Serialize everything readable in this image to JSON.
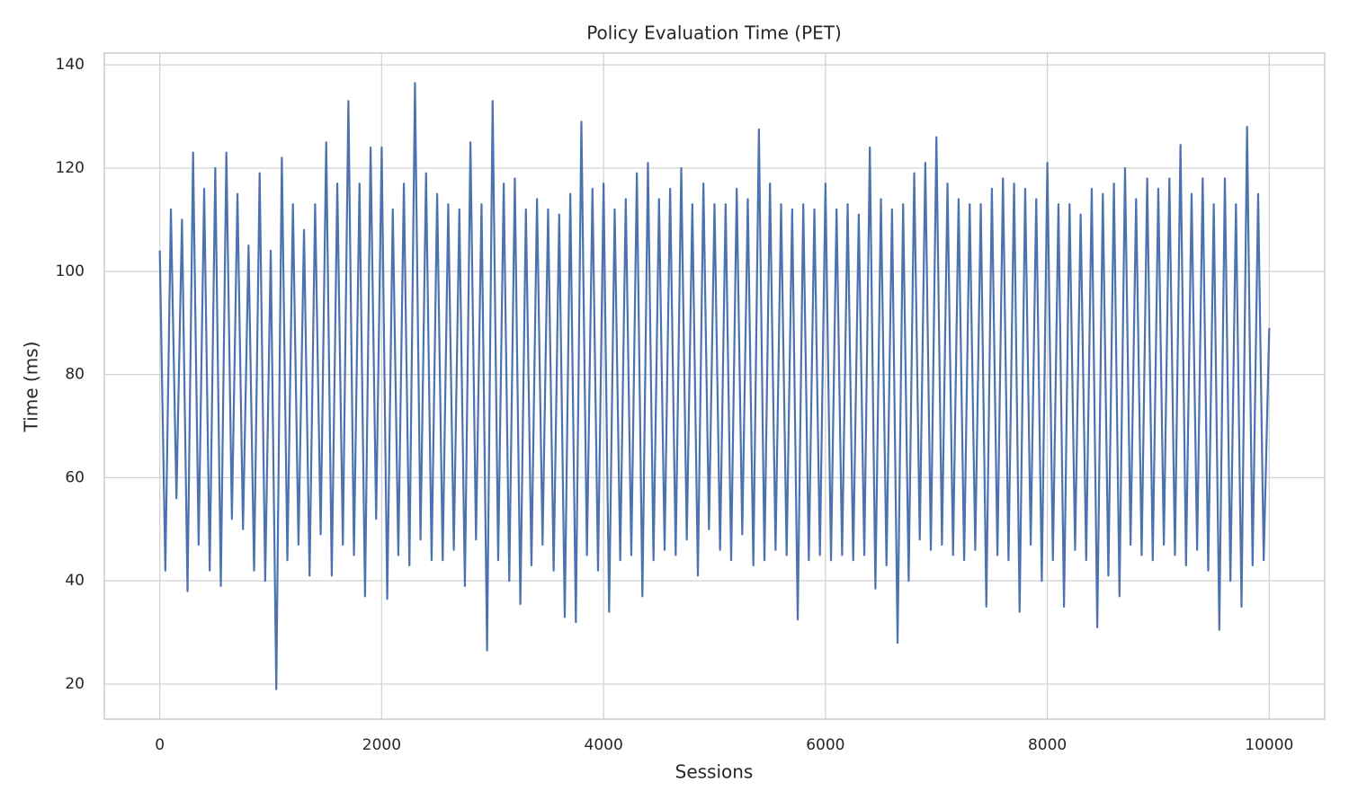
{
  "chart_data": {
    "type": "line",
    "title": "Policy Evaluation Time (PET)",
    "xlabel": "Sessions",
    "ylabel": "Time (ms)",
    "x": [
      0,
      50,
      100,
      150,
      200,
      250,
      300,
      350,
      400,
      450,
      500,
      550,
      600,
      650,
      700,
      750,
      800,
      850,
      900,
      950,
      1000,
      1050,
      1100,
      1150,
      1200,
      1250,
      1300,
      1350,
      1400,
      1450,
      1500,
      1550,
      1600,
      1650,
      1700,
      1750,
      1800,
      1850,
      1900,
      1950,
      2000,
      2050,
      2100,
      2150,
      2200,
      2250,
      2300,
      2350,
      2400,
      2450,
      2500,
      2550,
      2600,
      2650,
      2700,
      2750,
      2800,
      2850,
      2900,
      2950,
      3000,
      3050,
      3100,
      3150,
      3200,
      3250,
      3300,
      3350,
      3400,
      3450,
      3500,
      3550,
      3600,
      3650,
      3700,
      3750,
      3800,
      3850,
      3900,
      3950,
      4000,
      4050,
      4100,
      4150,
      4200,
      4250,
      4300,
      4350,
      4400,
      4450,
      4500,
      4550,
      4600,
      4650,
      4700,
      4750,
      4800,
      4850,
      4900,
      4950,
      5000,
      5050,
      5100,
      5150,
      5200,
      5250,
      5300,
      5350,
      5400,
      5450,
      5500,
      5550,
      5600,
      5650,
      5700,
      5750,
      5800,
      5850,
      5900,
      5950,
      6000,
      6050,
      6100,
      6150,
      6200,
      6250,
      6300,
      6350,
      6400,
      6450,
      6500,
      6550,
      6600,
      6650,
      6700,
      6750,
      6800,
      6850,
      6900,
      6950,
      7000,
      7050,
      7100,
      7150,
      7200,
      7250,
      7300,
      7350,
      7400,
      7450,
      7500,
      7550,
      7600,
      7650,
      7700,
      7750,
      7800,
      7850,
      7900,
      7950,
      8000,
      8050,
      8100,
      8150,
      8200,
      8250,
      8300,
      8350,
      8400,
      8450,
      8500,
      8550,
      8600,
      8650,
      8700,
      8750,
      8800,
      8850,
      8900,
      8950,
      9000,
      9050,
      9100,
      9150,
      9200,
      9250,
      9300,
      9350,
      9400,
      9450,
      9500,
      9550,
      9600,
      9650,
      9700,
      9750,
      9800,
      9850,
      9900,
      9950,
      10000
    ],
    "values": [
      104,
      42,
      112,
      56,
      110,
      38,
      123,
      47,
      116,
      42,
      120,
      39,
      123,
      52,
      115,
      50,
      105,
      42,
      119,
      40,
      104,
      19,
      122,
      44,
      113,
      47,
      108,
      41,
      113,
      49,
      125,
      41,
      117,
      47,
      133,
      45,
      117,
      37,
      124,
      52,
      124,
      36.5,
      112,
      45,
      117,
      43,
      136.5,
      48,
      119,
      44,
      115,
      44,
      113,
      46,
      112,
      39,
      125,
      48,
      113,
      26.5,
      133,
      44,
      117,
      40,
      118,
      35.5,
      112,
      43,
      114,
      47,
      112,
      42,
      111,
      33,
      115,
      32,
      129,
      45,
      116,
      42,
      117,
      34,
      112,
      44,
      114,
      45,
      119,
      37,
      121,
      44,
      114,
      46,
      116,
      45,
      120,
      48,
      113,
      41,
      117,
      50,
      113,
      46,
      113,
      44,
      116,
      49,
      114,
      43,
      127.5,
      44,
      117,
      46,
      113,
      45,
      112,
      32.5,
      113,
      44,
      112,
      45,
      117,
      44,
      112,
      45,
      113,
      44,
      111,
      45,
      124,
      38.5,
      114,
      43,
      112,
      28,
      113,
      40,
      119,
      48,
      121,
      46,
      126,
      47,
      117,
      45,
      114,
      44,
      113,
      46,
      113,
      35,
      116,
      45,
      118,
      44,
      117,
      34,
      116,
      47,
      114,
      40,
      121,
      44,
      113,
      35,
      113,
      46,
      111,
      44,
      116,
      31,
      115,
      41,
      117,
      37,
      120,
      47,
      114,
      45,
      118,
      44,
      116,
      47,
      118,
      45,
      124.5,
      43,
      115,
      46,
      118,
      42,
      113,
      30.5,
      118,
      40,
      113,
      35,
      128,
      43,
      115,
      44,
      89
    ],
    "color": "#4c72b0",
    "xlim": [
      -500,
      10500
    ],
    "xticks": [
      0,
      2000,
      4000,
      6000,
      8000,
      10000
    ],
    "ylim": [
      13.2,
      142.3
    ],
    "yticks": [
      20,
      40,
      60,
      80,
      100,
      120,
      140
    ],
    "grid": true
  }
}
